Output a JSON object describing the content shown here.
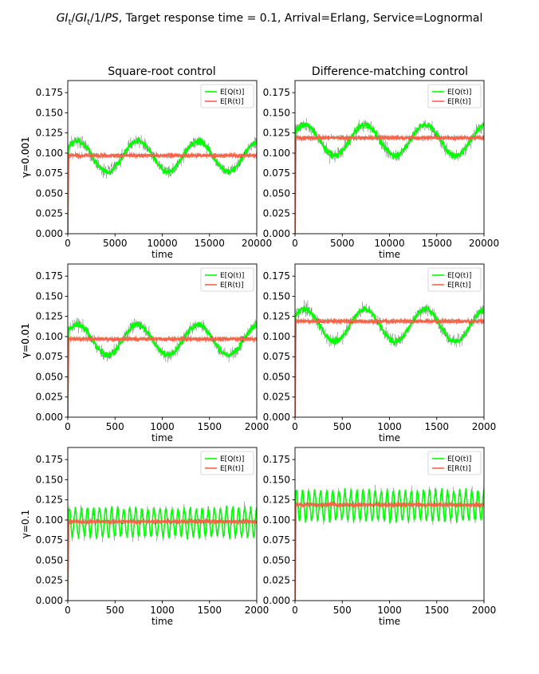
{
  "figure": {
    "title_parts": {
      "gi1": "GI",
      "sub1": "t",
      "slash1": "/",
      "gi2": "GI",
      "sub2": "t",
      "mid": "/1/",
      "ps": "PS",
      "rest": ", Target response time = 0.1, Arrival=Erlang, Service=Lognormal"
    },
    "column_titles": [
      "Square-root control",
      "Difference-matching control"
    ],
    "colors": {
      "q": "#00ff00",
      "r": "#ff6347",
      "noise": "#000000"
    }
  },
  "chart_data": [
    {
      "type": "line",
      "row_label": "γ=0.001",
      "column": "Square-root control",
      "xlabel": "time",
      "xlim": [
        0,
        20000
      ],
      "ylim": [
        0,
        0.19
      ],
      "xticks": [
        0,
        5000,
        10000,
        15000,
        20000
      ],
      "yticks": [
        0.0,
        0.025,
        0.05,
        0.075,
        0.1,
        0.125,
        0.15,
        0.175
      ],
      "legend": [
        "E[Q(t)]",
        "E[R(t)]"
      ],
      "legend_placement": "top-right",
      "grid": false,
      "series": [
        {
          "name": "E[Q(t)]",
          "mean": 0.096,
          "amplitude": 0.019,
          "period": 6400,
          "phase": 0.6,
          "noise": 0.007
        },
        {
          "name": "E[R(t)]",
          "mean": 0.097,
          "amplitude": 0.0,
          "period": 6400,
          "phase": 0.0,
          "noise": 0.003
        }
      ]
    },
    {
      "type": "line",
      "row_label": "γ=0.001",
      "column": "Difference-matching control",
      "xlabel": "time",
      "xlim": [
        0,
        20000
      ],
      "ylim": [
        0,
        0.19
      ],
      "xticks": [
        0,
        5000,
        10000,
        15000,
        20000
      ],
      "yticks": [
        0.0,
        0.025,
        0.05,
        0.075,
        0.1,
        0.125,
        0.15,
        0.175
      ],
      "legend": [
        "E[Q(t)]",
        "E[R(t)]"
      ],
      "legend_placement": "top-right",
      "grid": false,
      "series": [
        {
          "name": "E[Q(t)]",
          "mean": 0.116,
          "amplitude": 0.019,
          "period": 6400,
          "phase": 0.6,
          "noise": 0.007
        },
        {
          "name": "E[R(t)]",
          "mean": 0.119,
          "amplitude": 0.0,
          "period": 6400,
          "phase": 0.0,
          "noise": 0.003
        }
      ]
    },
    {
      "type": "line",
      "row_label": "γ=0.01",
      "column": "Square-root control",
      "xlabel": "time",
      "xlim": [
        0,
        2000
      ],
      "ylim": [
        0,
        0.19
      ],
      "xticks": [
        0,
        500,
        1000,
        1500,
        2000
      ],
      "yticks": [
        0.0,
        0.025,
        0.05,
        0.075,
        0.1,
        0.125,
        0.15,
        0.175
      ],
      "legend": [
        "E[Q(t)]",
        "E[R(t)]"
      ],
      "legend_placement": "top-right",
      "grid": false,
      "series": [
        {
          "name": "E[Q(t)]",
          "mean": 0.096,
          "amplitude": 0.019,
          "period": 640,
          "phase": 0.6,
          "noise": 0.007
        },
        {
          "name": "E[R(t)]",
          "mean": 0.097,
          "amplitude": 0.0,
          "period": 640,
          "phase": 0.0,
          "noise": 0.003
        }
      ]
    },
    {
      "type": "line",
      "row_label": "γ=0.01",
      "column": "Difference-matching control",
      "xlabel": "time",
      "xlim": [
        0,
        2000
      ],
      "ylim": [
        0,
        0.19
      ],
      "xticks": [
        0,
        500,
        1000,
        1500,
        2000
      ],
      "yticks": [
        0.0,
        0.025,
        0.05,
        0.075,
        0.1,
        0.125,
        0.15,
        0.175
      ],
      "legend": [
        "E[Q(t)]",
        "E[R(t)]"
      ],
      "legend_placement": "top-right",
      "grid": false,
      "series": [
        {
          "name": "E[Q(t)]",
          "mean": 0.114,
          "amplitude": 0.02,
          "period": 640,
          "phase": 0.6,
          "noise": 0.007
        },
        {
          "name": "E[R(t)]",
          "mean": 0.119,
          "amplitude": 0.0,
          "period": 640,
          "phase": 0.0,
          "noise": 0.003
        }
      ]
    },
    {
      "type": "line",
      "row_label": "γ=0.1",
      "column": "Square-root control",
      "xlabel": "time",
      "xlim": [
        0,
        2000
      ],
      "ylim": [
        0,
        0.19
      ],
      "xticks": [
        0,
        500,
        1000,
        1500,
        2000
      ],
      "yticks": [
        0.0,
        0.025,
        0.05,
        0.075,
        0.1,
        0.125,
        0.15,
        0.175
      ],
      "legend": [
        "E[Q(t)]",
        "E[R(t)]"
      ],
      "legend_placement": "top-right",
      "grid": false,
      "series": [
        {
          "name": "E[Q(t)]",
          "mean": 0.097,
          "amplitude": 0.017,
          "period": 64,
          "phase": 0.0,
          "noise": 0.006
        },
        {
          "name": "E[R(t)]",
          "mean": 0.098,
          "amplitude": 0.0,
          "period": 64,
          "phase": 0.0,
          "noise": 0.003
        }
      ]
    },
    {
      "type": "line",
      "row_label": "",
      "column": "Difference-matching control",
      "xlabel": "time",
      "xlim": [
        0,
        2000
      ],
      "ylim": [
        0,
        0.19
      ],
      "xticks": [
        0,
        500,
        1000,
        1500,
        2000
      ],
      "yticks": [
        0.0,
        0.025,
        0.05,
        0.075,
        0.1,
        0.125,
        0.15,
        0.175
      ],
      "legend": [
        "E[Q(t)]",
        "E[R(t)]"
      ],
      "legend_placement": "top-right",
      "grid": false,
      "series": [
        {
          "name": "E[Q(t)]",
          "mean": 0.118,
          "amplitude": 0.018,
          "period": 64,
          "phase": 0.0,
          "noise": 0.006
        },
        {
          "name": "E[R(t)]",
          "mean": 0.119,
          "amplitude": 0.0,
          "period": 64,
          "phase": 0.0,
          "noise": 0.003
        }
      ]
    }
  ]
}
